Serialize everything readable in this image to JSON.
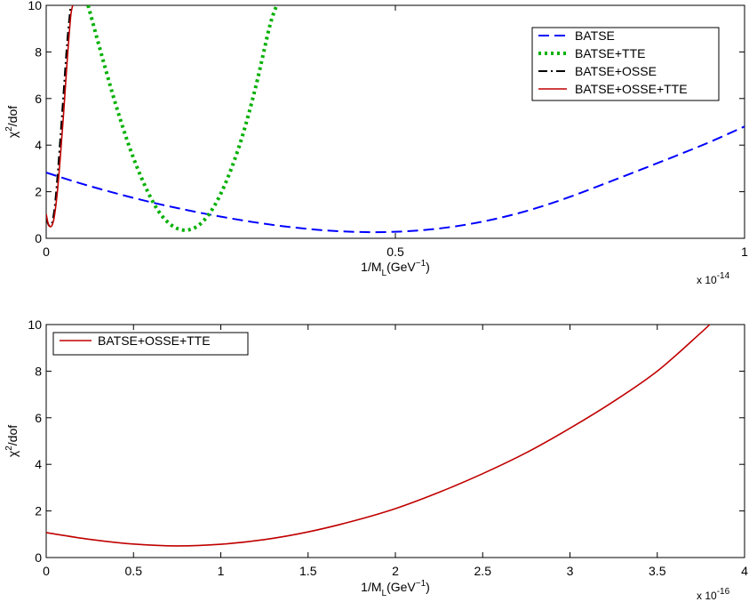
{
  "chart_data": [
    {
      "type": "line",
      "xlabel": "1/M_L(GeV^-1)",
      "ylabel": "χ^2/dof",
      "xlim": [
        0,
        1
      ],
      "ylim": [
        0,
        10
      ],
      "x_multiplier": "x 10",
      "x_multiplier_exp": "-14",
      "xticks": [
        "0",
        "0.5",
        "1"
      ],
      "yticks": [
        "0",
        "2",
        "4",
        "6",
        "8",
        "10"
      ],
      "legend_position": "top-right",
      "series": [
        {
          "name": "BATSE",
          "color": "#0000ff",
          "style": "dashed",
          "x": [
            0,
            0.05,
            0.1,
            0.15,
            0.2,
            0.25,
            0.3,
            0.35,
            0.4,
            0.45,
            0.5,
            0.55,
            0.6,
            0.65,
            0.7,
            0.75,
            0.8,
            0.85,
            0.9,
            0.95,
            1.0
          ],
          "y": [
            2.82,
            2.35,
            1.93,
            1.55,
            1.22,
            0.93,
            0.68,
            0.48,
            0.34,
            0.27,
            0.28,
            0.38,
            0.58,
            0.88,
            1.28,
            1.78,
            2.35,
            2.93,
            3.52,
            4.13,
            4.8
          ]
        },
        {
          "name": "BATSE+TTE",
          "color": "#00b000",
          "style": "dotted",
          "x": [
            0.06,
            0.08,
            0.1,
            0.12,
            0.14,
            0.16,
            0.18,
            0.2,
            0.22,
            0.24,
            0.26,
            0.28,
            0.3,
            0.32,
            0.33
          ],
          "y": [
            10.0,
            7.8,
            5.7,
            3.85,
            2.35,
            1.2,
            0.55,
            0.35,
            0.6,
            1.35,
            2.6,
            4.3,
            6.5,
            9.1,
            10.0
          ]
        },
        {
          "name": "BATSE+OSSE",
          "color": "#000000",
          "style": "dashdot",
          "x": [
            0.0,
            0.004,
            0.008,
            0.012,
            0.016,
            0.02,
            0.025,
            0.03,
            0.035
          ],
          "y": [
            0.85,
            0.55,
            0.62,
            1.3,
            2.6,
            4.2,
            6.3,
            8.4,
            10.0
          ]
        },
        {
          "name": "BATSE+OSSE+TTE",
          "color": "#c00000",
          "style": "solid",
          "x": [
            0.0,
            0.003,
            0.006,
            0.009,
            0.012,
            0.016,
            0.02,
            0.025,
            0.03,
            0.035,
            0.038
          ],
          "y": [
            1.05,
            0.6,
            0.5,
            0.6,
            1.0,
            2.0,
            3.4,
            5.4,
            7.6,
            9.5,
            10.0
          ]
        }
      ]
    },
    {
      "type": "line",
      "xlabel": "1/M_L(GeV^-1)",
      "ylabel": "χ^2/dof",
      "xlim": [
        0,
        4
      ],
      "ylim": [
        0,
        10
      ],
      "x_multiplier": "x 10",
      "x_multiplier_exp": "-16",
      "xticks": [
        "0",
        "0.5",
        "1",
        "1.5",
        "2",
        "2.5",
        "3",
        "3.5",
        "4"
      ],
      "yticks": [
        "0",
        "2",
        "4",
        "6",
        "8",
        "10"
      ],
      "legend_position": "top-left",
      "series": [
        {
          "name": "BATSE+OSSE+TTE",
          "color": "#c00000",
          "style": "solid",
          "x": [
            0,
            0.25,
            0.5,
            0.75,
            1.0,
            1.25,
            1.5,
            1.75,
            2.0,
            2.25,
            2.5,
            2.75,
            3.0,
            3.25,
            3.5,
            3.75,
            3.8
          ],
          "y": [
            1.07,
            0.78,
            0.58,
            0.5,
            0.57,
            0.77,
            1.1,
            1.55,
            2.1,
            2.8,
            3.6,
            4.5,
            5.55,
            6.7,
            8.0,
            9.65,
            10.0
          ]
        }
      ]
    }
  ]
}
